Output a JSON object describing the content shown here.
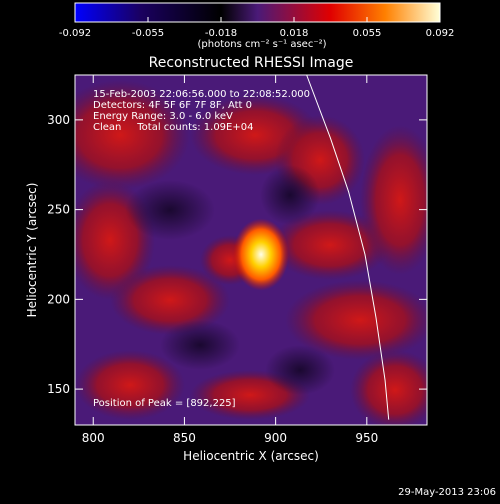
{
  "chart_data": {
    "type": "heatmap",
    "title": "Reconstructed RHESSI Image",
    "xlabel": "Heliocentric X (arcsec)",
    "ylabel": "Heliocentric Y (arcsec)",
    "xlim": [
      790,
      983
    ],
    "ylim": [
      130,
      325
    ],
    "x_ticks": [
      800,
      850,
      900,
      950
    ],
    "y_ticks": [
      150,
      200,
      250,
      300
    ],
    "colorbar": {
      "ticks": [
        "-0.092",
        "-0.055",
        "-0.018",
        "0.018",
        "0.055",
        "0.092"
      ],
      "range": [
        -0.092,
        0.092
      ],
      "unit_label": "(photons cm⁻² s⁻¹ asec⁻²)"
    },
    "info_lines": [
      "15-Feb-2003 22:06:56.000 to 22:08:52.000",
      "Detectors: 4F 5F 6F 7F 8F, Att 0",
      "Energy Range: 3.0 - 6.0 keV",
      "Clean     Total counts: 1.09E+04"
    ],
    "peak_label": "Position of Peak = [892,225]",
    "peak": {
      "x": 892,
      "y": 225,
      "value": 0.092
    },
    "limb_x": [
      917,
      930,
      940,
      949,
      955,
      960,
      962
    ],
    "limb_y": [
      325,
      290,
      260,
      225,
      190,
      155,
      133
    ]
  },
  "footer_date": "29-May-2013 23:06"
}
